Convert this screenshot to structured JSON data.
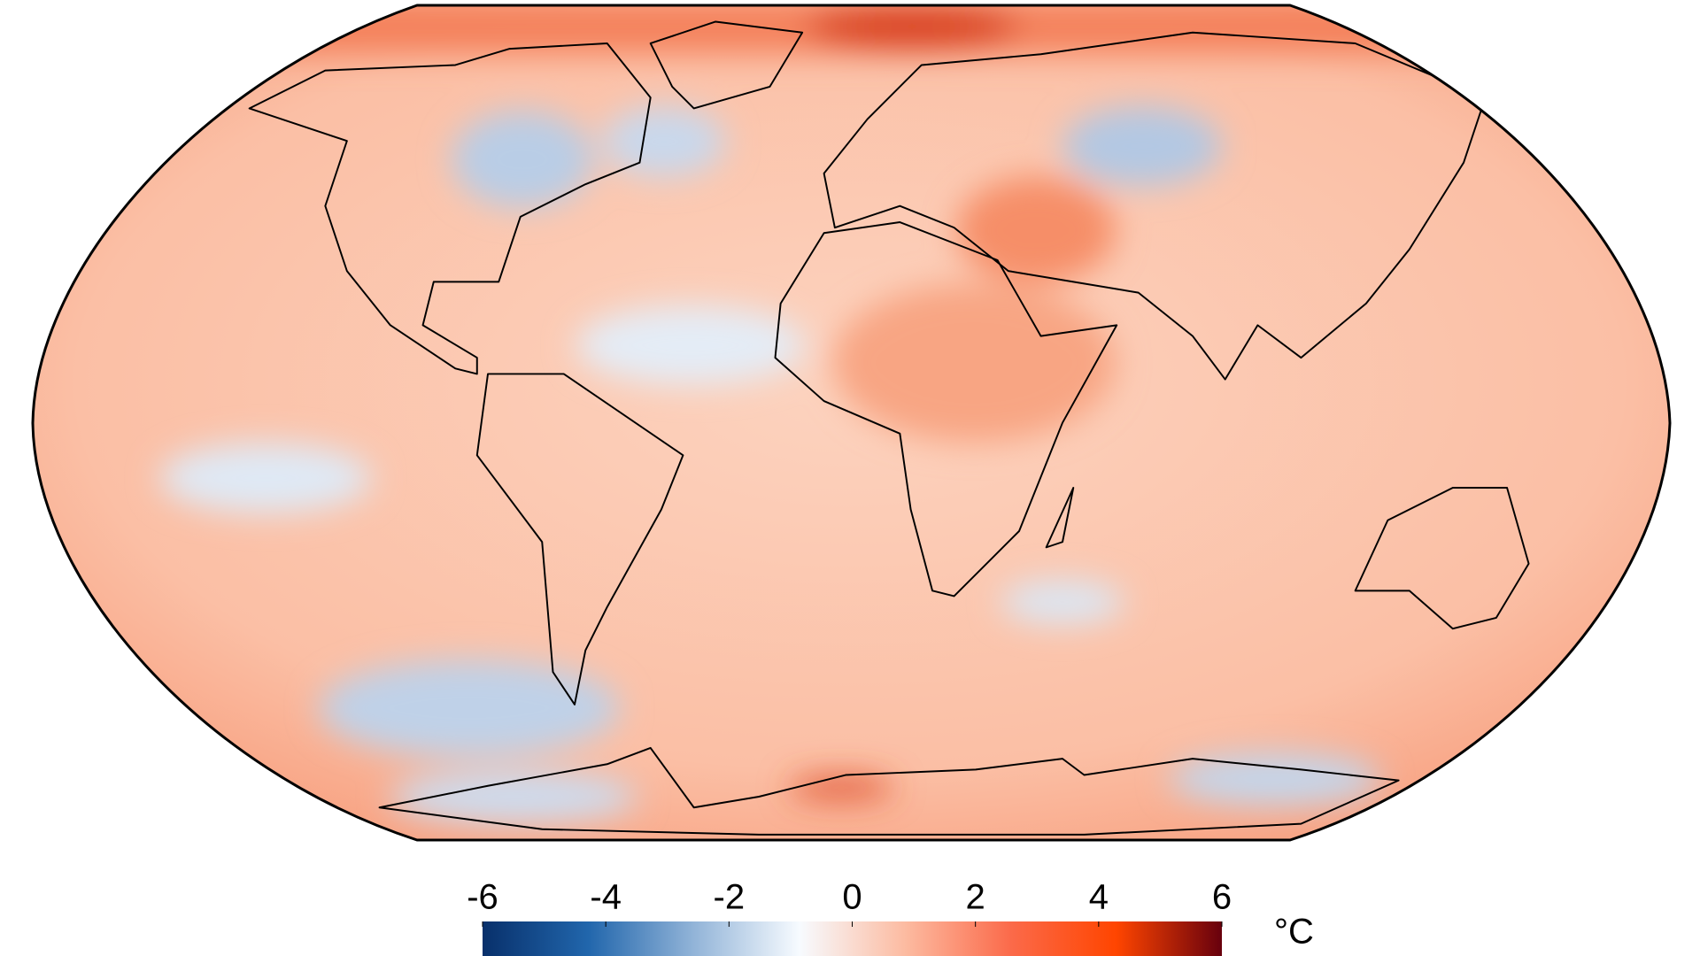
{
  "colorbar": {
    "lim": [
      -6,
      6
    ],
    "ticks": [
      -6,
      -4,
      -2,
      0,
      2,
      4,
      6
    ],
    "unit": "°C",
    "colors": [
      "#08306b",
      "#2166ac",
      "#92b4d8",
      "#f7fbff",
      "#fcbba1",
      "#fb6a4a",
      "#ff4500",
      "#67000d"
    ]
  }
}
